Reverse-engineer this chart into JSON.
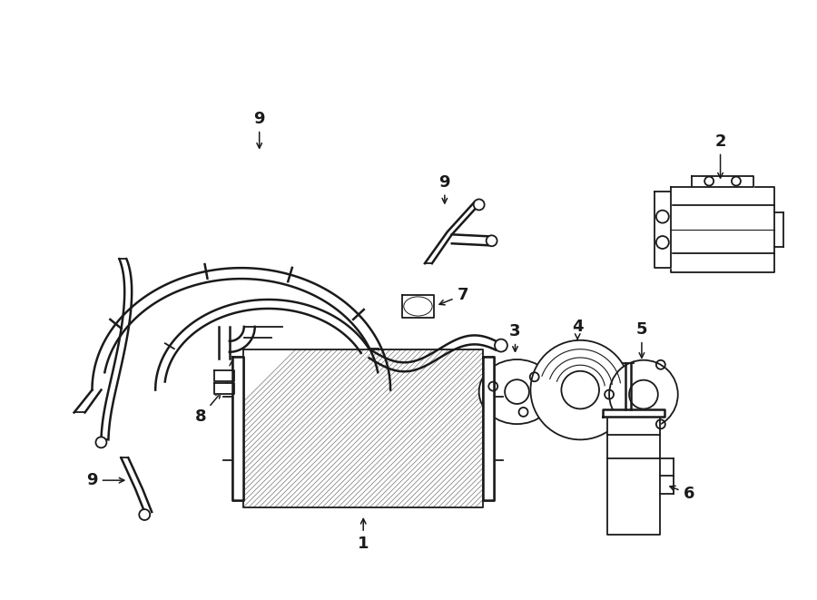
{
  "background_color": "#ffffff",
  "line_color": "#1a1a1a",
  "lw": 1.3,
  "fig_width": 9.0,
  "fig_height": 6.61,
  "dpi": 100
}
